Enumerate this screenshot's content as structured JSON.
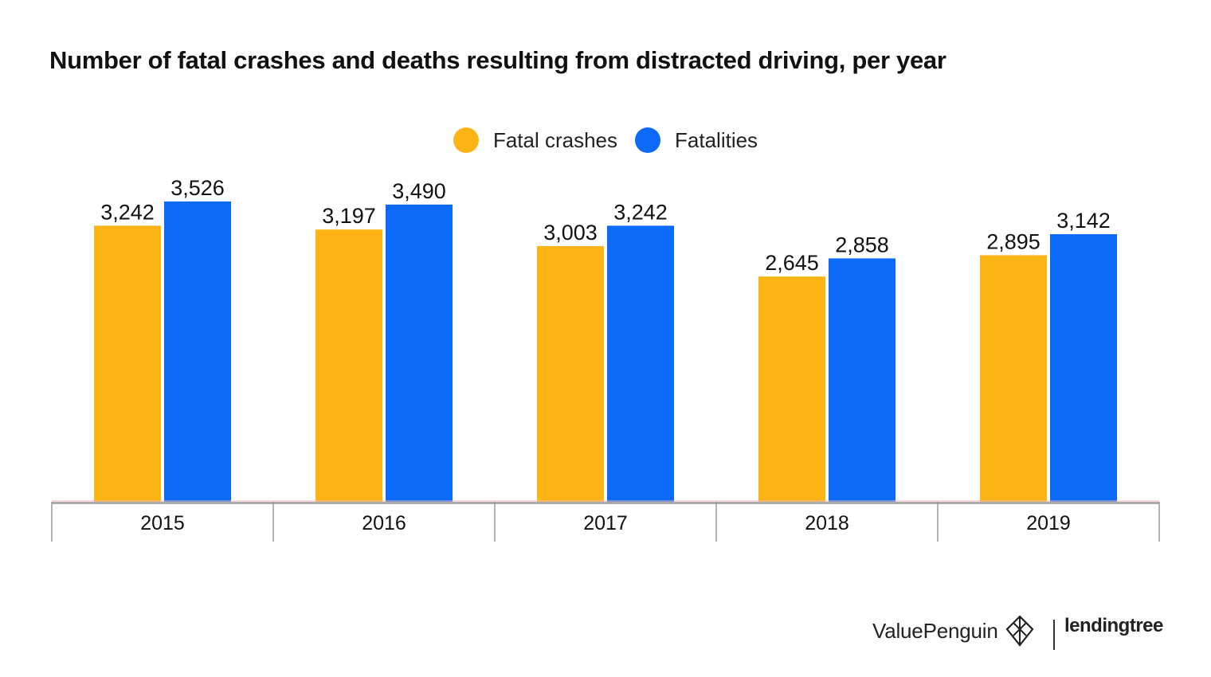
{
  "chart_data": {
    "type": "bar",
    "title": "Number of fatal crashes and deaths resulting from distracted driving, per year",
    "categories": [
      "2015",
      "2016",
      "2017",
      "2018",
      "2019"
    ],
    "series": [
      {
        "name": "Fatal crashes",
        "color": "#FDB515",
        "values": [
          3242,
          3197,
          3003,
          2645,
          2895
        ],
        "labels": [
          "3,242",
          "3,197",
          "3,003",
          "2,645",
          "2,895"
        ]
      },
      {
        "name": "Fatalities",
        "color": "#0B6AF7",
        "values": [
          3526,
          3490,
          3242,
          2858,
          3142
        ],
        "labels": [
          "3,526",
          "3,490",
          "3,242",
          "2,858",
          "3,142"
        ]
      }
    ],
    "ylim": [
      0,
      3526
    ],
    "legend": "top-center",
    "grid": false,
    "xlabel": "",
    "ylabel": ""
  },
  "branding": {
    "valuepenguin": "ValuePenguin",
    "lendingtree": "lendingtree"
  },
  "colors": {
    "axis": "#aaaaaa",
    "axis_shadow": "#f0b8b8"
  }
}
